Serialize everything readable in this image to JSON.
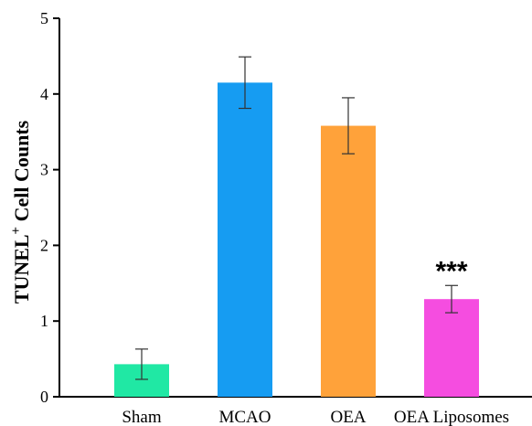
{
  "chart_data": {
    "type": "bar",
    "categories": [
      "Sham",
      "MCAO",
      "OEA",
      "OEA Liposomes"
    ],
    "values": [
      0.43,
      4.15,
      3.58,
      1.29
    ],
    "errors": [
      0.2,
      0.34,
      0.37,
      0.18
    ],
    "colors": [
      "#20e8a4",
      "#169cf2",
      "#ffa23a",
      "#f54de0"
    ],
    "annotations": [
      "",
      "",
      "",
      "***"
    ],
    "ylabel": "TUNEL",
    "ylabel_superscript": "+",
    "ylabel_suffix": " Cell Counts",
    "xlabel": "",
    "ylim": [
      0,
      5
    ],
    "yticks": [
      "0",
      "1",
      "2",
      "3",
      "4",
      "5"
    ],
    "grid": false
  }
}
